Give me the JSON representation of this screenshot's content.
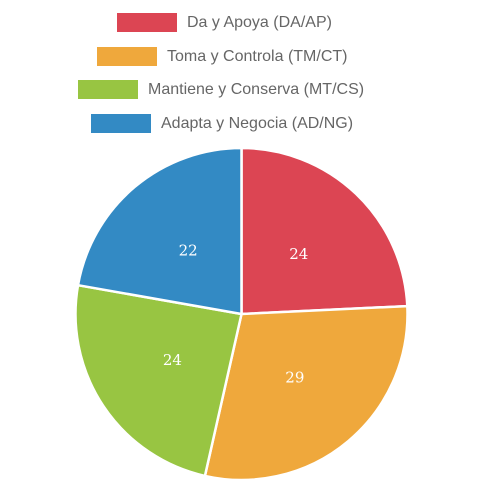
{
  "chart_data": {
    "type": "pie",
    "categories": [
      "Da y Apoya (DA/AP)",
      "Toma y Controla (TM/CT)",
      "Mantiene y Conserva (MT/CS)",
      "Adapta y Negocia (AD/NG)"
    ],
    "values": [
      24,
      29,
      24,
      22
    ],
    "colors": [
      "#dc4553",
      "#efa83c",
      "#98c542",
      "#338ac4"
    ],
    "legend": "top",
    "border_color": "#ffffff"
  }
}
